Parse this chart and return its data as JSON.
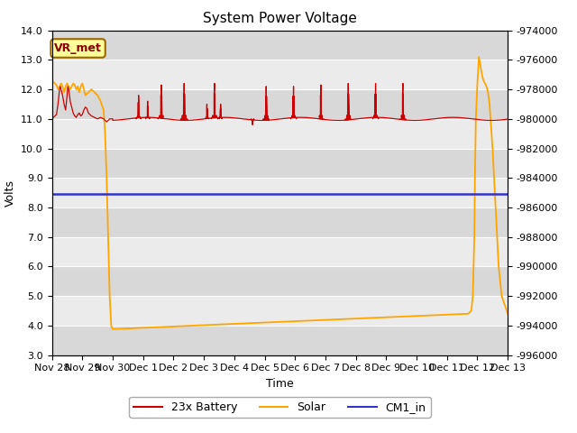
{
  "title": "System Power Voltage",
  "xlabel": "Time",
  "ylabel": "Volts",
  "ylim_left": [
    3.0,
    14.0
  ],
  "ylim_right": [
    -996000,
    -974000
  ],
  "yticks_left": [
    3.0,
    4.0,
    5.0,
    6.0,
    7.0,
    8.0,
    9.0,
    10.0,
    11.0,
    12.0,
    13.0,
    14.0
  ],
  "yticks_right": [
    -996000,
    -994000,
    -992000,
    -990000,
    -988000,
    -986000,
    -984000,
    -982000,
    -980000,
    -978000,
    -976000,
    -974000
  ],
  "xtick_labels": [
    "Nov 28",
    "Nov 29",
    "Nov 30",
    "Dec 1",
    "Dec 2",
    "Dec 3",
    "Dec 4",
    "Dec 5",
    "Dec 6",
    "Dec 7",
    "Dec 8",
    "Dec 9",
    "Dec 10",
    "Dec 11",
    "Dec 12",
    "Dec 13"
  ],
  "background_color": "#e8e8e8",
  "band_color_light": "#ebebeb",
  "band_color_dark": "#d8d8d8",
  "figure_background": "#ffffff",
  "grid_color": "#ffffff",
  "annotation_text": "VR_met",
  "annotation_box_color": "#ffff99",
  "annotation_box_edge": "#996600",
  "battery_color": "#cc0000",
  "solar_color": "#ffa500",
  "cm1_color": "#3333cc",
  "battery_label": "23x Battery",
  "solar_label": "Solar",
  "cm1_label": "CM1_in",
  "cm1_value": 8.45,
  "title_fontsize": 11,
  "tick_fontsize": 8,
  "xlabel_fontsize": 9,
  "ylabel_fontsize": 9
}
